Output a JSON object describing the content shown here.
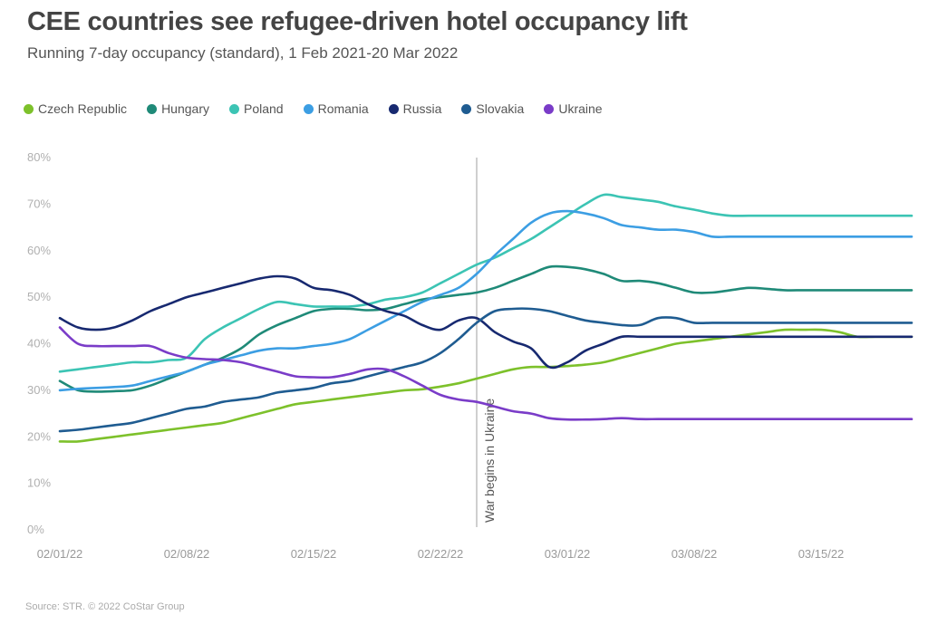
{
  "chart_data": {
    "type": "line",
    "title": "CEE countries see refugee-driven hotel occupancy lift",
    "subtitle": "Running 7-day occupancy (standard), 1 Feb 2021-20 Mar 2022",
    "source": "Source: STR. © 2022 CoStar Group",
    "ylim": [
      0,
      80
    ],
    "y_ticks": [
      "0%",
      "10%",
      "20%",
      "30%",
      "40%",
      "50%",
      "60%",
      "70%",
      "80%"
    ],
    "x_ticks": [
      "02/01/22",
      "02/08/22",
      "02/15/22",
      "02/22/22",
      "03/01/22",
      "03/08/22",
      "03/15/22"
    ],
    "x_days": [
      1,
      2,
      3,
      4,
      5,
      6,
      7,
      8,
      9,
      10,
      11,
      12,
      13,
      14,
      15,
      16,
      17,
      18,
      19,
      20,
      21,
      22,
      23,
      24,
      25,
      26,
      27,
      28,
      29,
      30,
      31,
      32,
      33,
      34,
      35,
      36,
      37,
      38,
      39,
      40,
      41,
      42,
      43,
      44,
      45,
      46,
      47,
      48
    ],
    "annotation": {
      "label": "War begins in Ukraine",
      "x_day": 24
    },
    "legend_position": "top-left",
    "series": [
      {
        "name": "Czech Republic",
        "color": "#7dc12b",
        "values": [
          19,
          19,
          19.5,
          20,
          20.5,
          21,
          21.5,
          22,
          22.5,
          23,
          24,
          25,
          26,
          27,
          27.5,
          28,
          28.5,
          29,
          29.5,
          30,
          30.2,
          30.8,
          31.5,
          32.5,
          33.5,
          34.5,
          35,
          35,
          35.2,
          35.5,
          36,
          37,
          38,
          39,
          40,
          40.5,
          41,
          41.5,
          42,
          42.5,
          43,
          43,
          43,
          42.5,
          41.5,
          41.5,
          41.5,
          41.5
        ]
      },
      {
        "name": "Hungary",
        "color": "#1f8a78",
        "values": [
          32,
          30,
          29.7,
          29.8,
          30,
          31,
          32.5,
          34,
          35.5,
          37,
          39,
          42,
          44,
          45.5,
          47,
          47.5,
          47.5,
          47.2,
          47.5,
          48.5,
          49.5,
          50,
          50.5,
          51,
          52,
          53.5,
          55,
          56.5,
          56.5,
          56,
          55,
          53.5,
          53.5,
          53,
          52,
          51,
          51,
          51.5,
          52,
          51.8,
          51.5,
          51.5,
          51.5,
          51.5,
          51.5,
          51.5,
          51.5,
          51.5
        ]
      },
      {
        "name": "Poland",
        "color": "#3cc4b4",
        "values": [
          34,
          34.5,
          35,
          35.5,
          36,
          36,
          36.5,
          37,
          41,
          43.5,
          45.5,
          47.5,
          49,
          48.5,
          48,
          48,
          48,
          48.5,
          49.5,
          50,
          51,
          53,
          55,
          57,
          58.5,
          60.5,
          62.5,
          65,
          67.5,
          70,
          72,
          71.5,
          71,
          70.5,
          69.5,
          68.8,
          68,
          67.5,
          67.5,
          67.5,
          67.5,
          67.5,
          67.5,
          67.5,
          67.5,
          67.5,
          67.5,
          67.5
        ]
      },
      {
        "name": "Romania",
        "color": "#3c9ee3",
        "values": [
          30,
          30.3,
          30.5,
          30.7,
          31,
          32,
          33,
          34,
          35.5,
          36.5,
          37.5,
          38.5,
          39,
          39,
          39.5,
          40,
          41,
          43,
          45,
          47,
          49,
          50.5,
          52,
          55,
          59,
          62.5,
          66,
          68,
          68.5,
          68,
          67,
          65.5,
          65,
          64.5,
          64.5,
          64,
          63,
          63,
          63,
          63,
          63,
          63,
          63,
          63,
          63,
          63,
          63,
          63
        ]
      },
      {
        "name": "Russia",
        "color": "#172970",
        "values": [
          45.5,
          43.5,
          43,
          43.5,
          45,
          47,
          48.5,
          50,
          51,
          52,
          53,
          54,
          54.5,
          54,
          52,
          51.5,
          50.5,
          48.5,
          47,
          46,
          44,
          43,
          45,
          45.5,
          42.5,
          40.5,
          39,
          35,
          36,
          38.5,
          40,
          41.5,
          41.5,
          41.5,
          41.5,
          41.5,
          41.5,
          41.5,
          41.5,
          41.5,
          41.5,
          41.5,
          41.5,
          41.5,
          41.5,
          41.5,
          41.5,
          41.5
        ]
      },
      {
        "name": "Slovakia",
        "color": "#1f5c91",
        "values": [
          21.2,
          21.5,
          22,
          22.5,
          23,
          24,
          25,
          26,
          26.5,
          27.5,
          28,
          28.5,
          29.5,
          30,
          30.5,
          31.5,
          32,
          33,
          34,
          35,
          36,
          38,
          41,
          44.5,
          47,
          47.5,
          47.5,
          47,
          46,
          45,
          44.5,
          44,
          44,
          45.5,
          45.5,
          44.5,
          44.5,
          44.5,
          44.5,
          44.5,
          44.5,
          44.5,
          44.5,
          44.5,
          44.5,
          44.5,
          44.5,
          44.5
        ]
      },
      {
        "name": "Ukraine",
        "color": "#7a3cc8",
        "values": [
          43.5,
          40,
          39.5,
          39.5,
          39.5,
          39.5,
          38,
          37,
          36.7,
          36.5,
          36,
          35,
          34,
          33,
          32.8,
          32.8,
          33.5,
          34.5,
          34.5,
          33,
          31,
          29,
          28,
          27.5,
          26.5,
          25.5,
          25,
          24,
          23.7,
          23.7,
          23.8,
          24,
          23.8,
          23.8,
          23.8,
          23.8,
          23.8,
          23.8,
          23.8,
          23.8,
          23.8,
          23.8,
          23.8,
          23.8,
          23.8,
          23.8,
          23.8,
          23.8
        ]
      }
    ]
  }
}
